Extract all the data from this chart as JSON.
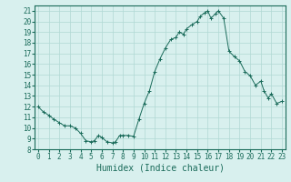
{
  "xlabel": "Humidex (Indice chaleur)",
  "ylabel": "",
  "x_values": [
    0,
    0.5,
    1,
    1.5,
    2,
    2.5,
    3,
    3.5,
    4,
    4.5,
    5,
    5.3,
    5.7,
    6,
    6.5,
    7,
    7.3,
    7.7,
    8,
    8.5,
    9,
    9.5,
    10,
    10.5,
    11,
    11.5,
    12,
    12.5,
    13,
    13.3,
    13.7,
    14,
    14.5,
    15,
    15.3,
    15.7,
    16,
    16.3,
    16.7,
    17,
    17.5,
    18,
    18.5,
    19,
    19.5,
    20,
    20.5,
    21,
    21.3,
    21.7,
    22,
    22.5,
    23
  ],
  "y_values": [
    12.0,
    11.5,
    11.2,
    10.8,
    10.5,
    10.2,
    10.2,
    10.0,
    9.5,
    8.8,
    8.7,
    8.8,
    9.3,
    9.1,
    8.7,
    8.6,
    8.7,
    9.3,
    9.3,
    9.3,
    9.2,
    10.8,
    12.3,
    13.5,
    15.3,
    16.5,
    17.5,
    18.3,
    18.5,
    19.0,
    18.8,
    19.3,
    19.7,
    20.0,
    20.5,
    20.8,
    21.0,
    20.3,
    20.7,
    21.0,
    20.3,
    17.2,
    16.7,
    16.3,
    15.3,
    14.9,
    14.0,
    14.4,
    13.5,
    12.8,
    13.2,
    12.3,
    12.5
  ],
  "line_color": "#1a6b5a",
  "bg_color": "#d8f0ee",
  "grid_color": "#b0d8d4",
  "axis_color": "#1a6b5a",
  "xlim": [
    -0.3,
    23.3
  ],
  "ylim": [
    8,
    21.5
  ],
  "yticks": [
    8,
    9,
    10,
    11,
    12,
    13,
    14,
    15,
    16,
    17,
    18,
    19,
    20,
    21
  ],
  "xticks": [
    0,
    1,
    2,
    3,
    4,
    5,
    6,
    7,
    8,
    9,
    10,
    11,
    12,
    13,
    14,
    15,
    16,
    17,
    18,
    19,
    20,
    21,
    22,
    23
  ],
  "tick_fontsize": 5.5,
  "xlabel_fontsize": 7
}
